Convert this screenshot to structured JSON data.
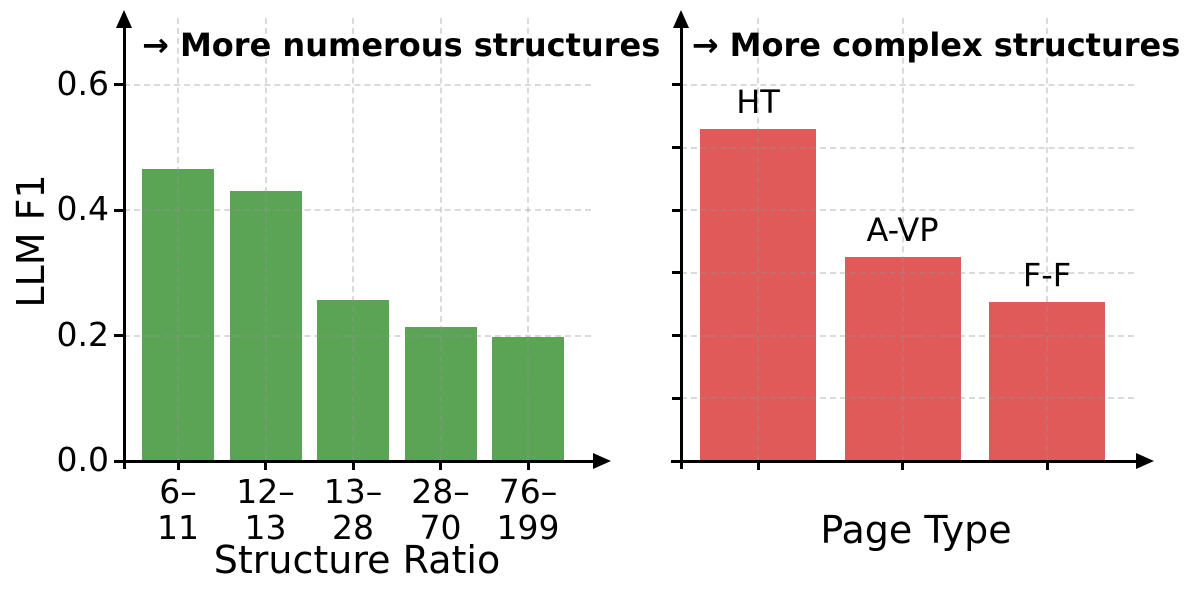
{
  "figure": {
    "background": "#ffffff",
    "axis_color": "#000000",
    "grid_style": "dashed",
    "grid_color": "#969696"
  },
  "chart_data": [
    {
      "type": "bar",
      "panel": "left",
      "annotation": "→ More numerous structures",
      "xlabel": "Structure Ratio",
      "ylabel": "LLM F1",
      "categories": [
        "6–11",
        "12–13",
        "13–28",
        "28–70",
        "76–199"
      ],
      "category_lines": [
        [
          "6–",
          "11"
        ],
        [
          "12–",
          "13"
        ],
        [
          "13–",
          "28"
        ],
        [
          "28–",
          "70"
        ],
        [
          "76–",
          "199"
        ]
      ],
      "values": [
        0.465,
        0.43,
        0.257,
        0.214,
        0.197
      ],
      "bar_color": "#5ba456",
      "ylim": [
        0,
        0.7
      ],
      "yticks": [
        0.0,
        0.2,
        0.4,
        0.6
      ],
      "ytick_labels": [
        "0.0",
        "0.2",
        "0.4",
        "0.6"
      ],
      "grid_y": [
        0.2,
        0.4,
        0.6
      ],
      "grid": "dashed",
      "legend": "none"
    },
    {
      "type": "bar",
      "panel": "right",
      "annotation": "→ More complex structures",
      "xlabel": "Page Type",
      "ylabel": "",
      "categories": [
        "HT",
        "A-VP",
        "F-F"
      ],
      "bar_labels": [
        "HT",
        "A-VP",
        "F-F"
      ],
      "values": [
        0.53,
        0.325,
        0.253
      ],
      "bar_color": "#e05a5a",
      "ylim": [
        0,
        0.7
      ],
      "yticks": [
        0.0,
        0.1,
        0.2,
        0.3,
        0.4,
        0.5,
        0.6
      ],
      "ytick_labels": [],
      "grid_y": [
        0.1,
        0.2,
        0.3,
        0.4,
        0.5,
        0.6
      ],
      "grid": "dashed",
      "legend": "none"
    }
  ]
}
